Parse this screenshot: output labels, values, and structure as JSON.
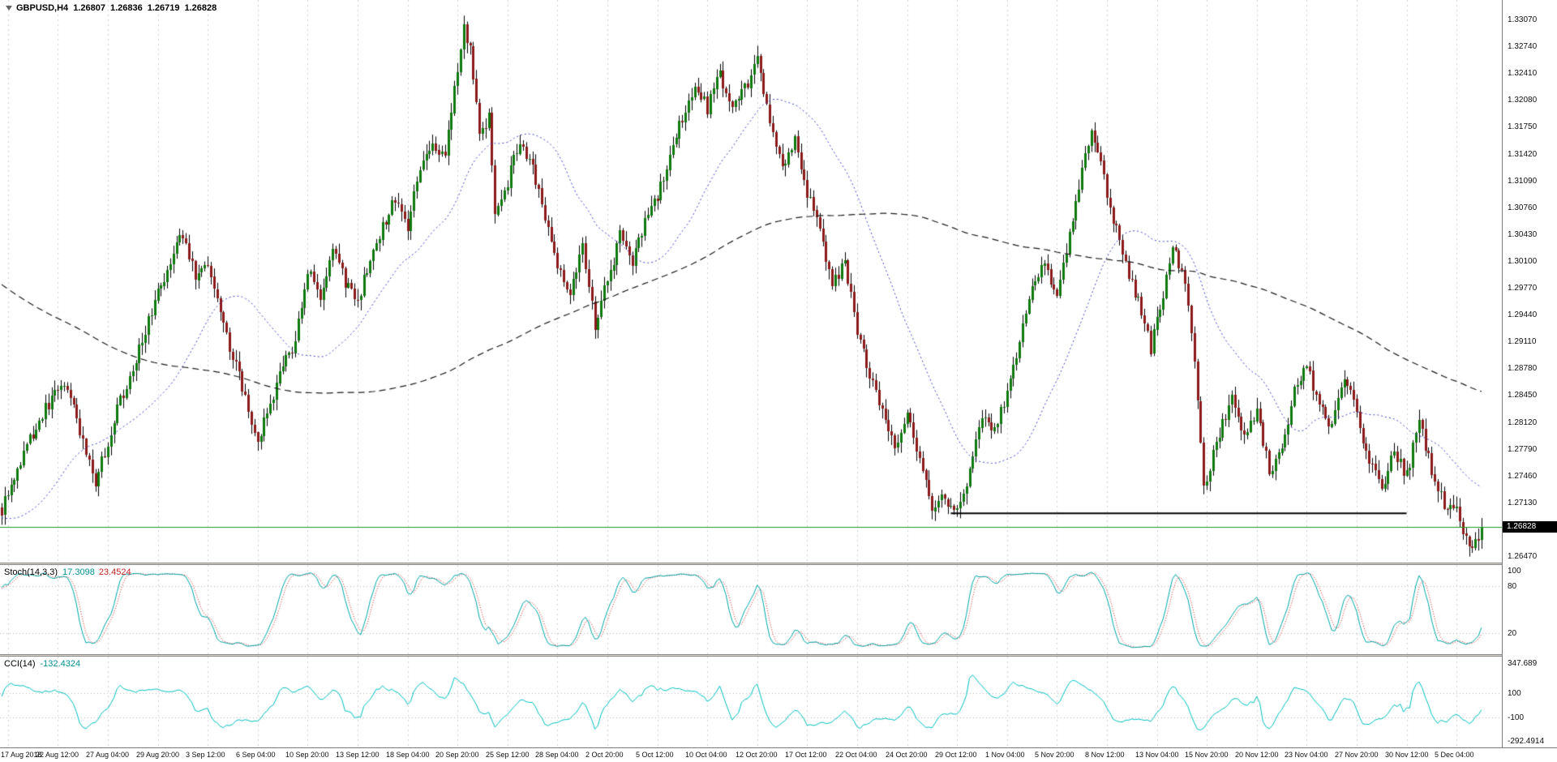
{
  "header": {
    "symbol": "GBPUSD,H4",
    "open": "1.26807",
    "high": "1.26836",
    "low": "1.26719",
    "close": "1.26828"
  },
  "chart_data": {
    "type": "candlestick",
    "title": "GBPUSD,H4 1.26807 1.26836 1.26719 1.26828",
    "symbol": "GBPUSD",
    "timeframe": "H4",
    "bars_total": 475,
    "first_tick_bar": 2,
    "bars_per_tick": 16,
    "x_ticks": [
      "17 Aug 2018",
      "22 Aug 12:00",
      "27 Aug 04:00",
      "29 Aug 20:00",
      "3 Sep 12:00",
      "6 Sep 04:00",
      "10 Sep 20:00",
      "13 Sep 12:00",
      "18 Sep 04:00",
      "20 Sep 20:00",
      "25 Sep 12:00",
      "28 Sep 04:00",
      "2 Oct 20:00",
      "5 Oct 12:00",
      "10 Oct 04:00",
      "12 Oct 20:00",
      "17 Oct 12:00",
      "22 Oct 04:00",
      "24 Oct 20:00",
      "29 Oct 12:00",
      "1 Nov 04:00",
      "5 Nov 20:00",
      "8 Nov 12:00",
      "13 Nov 04:00",
      "15 Nov 20:00",
      "20 Nov 12:00",
      "23 Nov 04:00",
      "27 Nov 20:00",
      "30 Nov 12:00",
      "5 Dec 04:00"
    ],
    "y_ticks": [
      "1.33070",
      "1.32740",
      "1.32410",
      "1.32080",
      "1.31750",
      "1.31420",
      "1.31090",
      "1.30760",
      "1.30430",
      "1.30100",
      "1.29770",
      "1.29440",
      "1.29110",
      "1.28780",
      "1.28450",
      "1.28120",
      "1.27790",
      "1.27460",
      "1.27130",
      "1.26800",
      "1.26470"
    ],
    "y_max": 1.3307,
    "y_min": 1.2647,
    "last_price": 1.26828,
    "last_price_label": "1.26828",
    "price_waypoints": [
      [
        0,
        1.2705
      ],
      [
        6,
        1.2765
      ],
      [
        14,
        1.283
      ],
      [
        20,
        1.2862
      ],
      [
        26,
        1.279
      ],
      [
        30,
        1.2735
      ],
      [
        36,
        1.2816
      ],
      [
        44,
        1.2902
      ],
      [
        50,
        1.2972
      ],
      [
        56,
        1.303
      ],
      [
        58,
        1.3043
      ],
      [
        62,
        1.299
      ],
      [
        66,
        1.3012
      ],
      [
        70,
        1.2942
      ],
      [
        76,
        1.2868
      ],
      [
        82,
        1.2788
      ],
      [
        86,
        1.2832
      ],
      [
        90,
        1.288
      ],
      [
        94,
        1.291
      ],
      [
        98,
        1.3
      ],
      [
        102,
        1.2965
      ],
      [
        106,
        1.302
      ],
      [
        110,
        1.2985
      ],
      [
        114,
        1.2962
      ],
      [
        118,
        1.301
      ],
      [
        122,
        1.3052
      ],
      [
        126,
        1.3088
      ],
      [
        130,
        1.3048
      ],
      [
        134,
        1.3128
      ],
      [
        138,
        1.3155
      ],
      [
        142,
        1.314
      ],
      [
        146,
        1.3245
      ],
      [
        148,
        1.3298
      ],
      [
        150,
        1.327
      ],
      [
        153,
        1.316
      ],
      [
        156,
        1.3185
      ],
      [
        158,
        1.3062
      ],
      [
        162,
        1.3108
      ],
      [
        166,
        1.3158
      ],
      [
        170,
        1.3122
      ],
      [
        174,
        1.3062
      ],
      [
        178,
        1.3002
      ],
      [
        182,
        1.2972
      ],
      [
        186,
        1.303
      ],
      [
        190,
        1.2932
      ],
      [
        194,
        1.2985
      ],
      [
        198,
        1.304
      ],
      [
        202,
        1.3012
      ],
      [
        206,
        1.3058
      ],
      [
        210,
        1.3088
      ],
      [
        214,
        1.314
      ],
      [
        218,
        1.3188
      ],
      [
        222,
        1.3228
      ],
      [
        226,
        1.3198
      ],
      [
        230,
        1.324
      ],
      [
        234,
        1.3192
      ],
      [
        238,
        1.3222
      ],
      [
        242,
        1.3255
      ],
      [
        246,
        1.3178
      ],
      [
        250,
        1.3122
      ],
      [
        254,
        1.3158
      ],
      [
        258,
        1.3092
      ],
      [
        262,
        1.3048
      ],
      [
        266,
        1.2982
      ],
      [
        270,
        1.3008
      ],
      [
        274,
        1.2922
      ],
      [
        278,
        1.2868
      ],
      [
        282,
        1.2822
      ],
      [
        286,
        1.2782
      ],
      [
        290,
        1.2818
      ],
      [
        294,
        1.2762
      ],
      [
        298,
        1.2706
      ],
      [
        302,
        1.272
      ],
      [
        306,
        1.2698
      ],
      [
        310,
        1.275
      ],
      [
        314,
        1.2822
      ],
      [
        318,
        1.28
      ],
      [
        322,
        1.2845
      ],
      [
        326,
        1.2912
      ],
      [
        330,
        1.2982
      ],
      [
        334,
        1.3008
      ],
      [
        338,
        1.2962
      ],
      [
        342,
        1.3048
      ],
      [
        346,
        1.3122
      ],
      [
        349,
        1.3172
      ],
      [
        352,
        1.3128
      ],
      [
        356,
        1.3062
      ],
      [
        360,
        1.3002
      ],
      [
        364,
        1.2962
      ],
      [
        368,
        1.2902
      ],
      [
        372,
        1.2968
      ],
      [
        375,
        1.3032
      ],
      [
        379,
        1.2982
      ],
      [
        382,
        1.2892
      ],
      [
        385,
        1.2732
      ],
      [
        388,
        1.2772
      ],
      [
        391,
        1.2812
      ],
      [
        394,
        1.2838
      ],
      [
        398,
        1.2792
      ],
      [
        402,
        1.2826
      ],
      [
        406,
        1.2752
      ],
      [
        410,
        1.2776
      ],
      [
        414,
        1.2856
      ],
      [
        418,
        1.2882
      ],
      [
        422,
        1.2832
      ],
      [
        426,
        1.2806
      ],
      [
        430,
        1.2868
      ],
      [
        434,
        1.2822
      ],
      [
        438,
        1.2762
      ],
      [
        442,
        1.2732
      ],
      [
        446,
        1.2776
      ],
      [
        450,
        1.2746
      ],
      [
        454,
        1.2816
      ],
      [
        458,
        1.2752
      ],
      [
        462,
        1.2712
      ],
      [
        466,
        1.2702
      ],
      [
        469,
        1.2668
      ],
      [
        471,
        1.2655
      ],
      [
        474,
        1.26828
      ]
    ],
    "spikes": [
      [
        148,
        "high",
        1.3307
      ],
      [
        385,
        "low",
        1.2723
      ],
      [
        470,
        "low",
        1.2652
      ]
    ],
    "overlays": {
      "ma_fast": {
        "type": "moving-average",
        "style": "dotted",
        "color": "#4444CC",
        "period": 34
      },
      "ma_slow": {
        "type": "moving-average",
        "style": "dashed",
        "color": "#1A1A1A",
        "period": 200
      },
      "support_line": {
        "type": "horizontal-segment",
        "price": 1.27,
        "from_bar": 304,
        "to_bar": 450,
        "color": "#000000"
      },
      "bid_line": {
        "type": "horizontal-line",
        "price": 1.26828,
        "color": "#1E9B1E"
      }
    },
    "indicators": {
      "stoch": {
        "label": "Stoch(14,3,3)",
        "main_value": "17.3098",
        "signal_value": "23.4524",
        "period_k": 14,
        "period_d": 3,
        "slowing": 3,
        "levels": [
          20,
          80
        ],
        "axis_labels": [
          {
            "value": 100,
            "label": "100"
          },
          {
            "value": 80,
            "label": "80"
          },
          {
            "value": 20,
            "label": "20"
          }
        ],
        "main_color": "#00A8A8",
        "signal_color": "#E02020"
      },
      "cci": {
        "label": "CCI(14)",
        "value": "-132.4324",
        "period": 14,
        "levels": [
          100,
          -100
        ],
        "range_max": 347.689,
        "range_min": -292.4914,
        "axis_labels": [
          {
            "value": 347.689,
            "label": "347.689"
          },
          {
            "value": 100,
            "label": "100"
          },
          {
            "value": -100,
            "label": "-100"
          },
          {
            "value": -292.4914,
            "label": "-292.4914"
          }
        ],
        "color": "#00C0C0"
      }
    },
    "colors": {
      "bull": "#0E7A0E",
      "bear": "#8C1A1A",
      "wick": "#000000",
      "grid": "#D4D4D4",
      "bg": "#FFFFFF",
      "axis_text": "#101010",
      "tag_bg": "#000000",
      "tag_text": "#FFFFFF"
    }
  }
}
